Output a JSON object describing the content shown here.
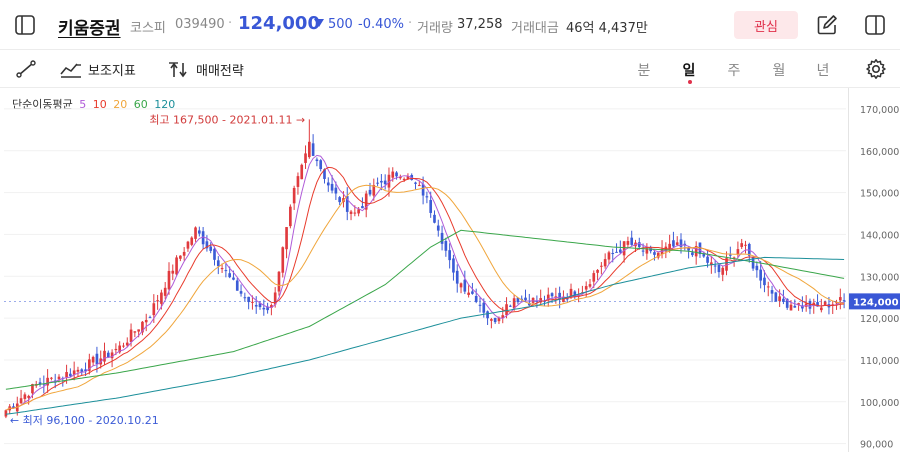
{
  "header": {
    "stock_name": "키움증권",
    "market": "코스피",
    "code": "039490",
    "price": "124,000",
    "change": "500",
    "change_pct": "-0.40%",
    "volume_label": "거래량",
    "volume": "37,258",
    "amount_label": "거래대금",
    "amount": "46억 4,437만",
    "favorite_label": "관심",
    "icons": [
      "sidebar-toggle-icon",
      "edit-icon",
      "panel-icon"
    ]
  },
  "toolbar": {
    "draw_icon": "line-draw-icon",
    "indicator_label": "보조지표",
    "strategy_label": "매매전략",
    "periods": [
      "분",
      "일",
      "주",
      "월",
      "년"
    ],
    "active_period": "일",
    "settings_icon": "gear-icon"
  },
  "colors": {
    "up": "#e03a3e",
    "down": "#3b5bd6",
    "ma5": "#b05cd8",
    "ma10": "#e83b2c",
    "ma20": "#f0a63c",
    "ma60": "#3aa64a",
    "ma120": "#1c8f9a"
  },
  "chart_data": {
    "type": "candlestick",
    "legend_title": "단순이동평균",
    "ma_periods": [
      "5",
      "10",
      "20",
      "60",
      "120"
    ],
    "ylim": [
      88000,
      175000
    ],
    "y_ticks": [
      90000,
      100000,
      110000,
      120000,
      130000,
      140000,
      150000,
      160000,
      170000
    ],
    "y_tick_labels": [
      "90,000",
      "100,000",
      "110,000",
      "120,000",
      "130,000",
      "140,000",
      "150,000",
      "160,000",
      "170,000"
    ],
    "current_price": 124000,
    "current_price_label": "124,000",
    "high_label": "최고 167,500 - 2021.01.11",
    "low_label": "최저 96,100 - 2020.10.21",
    "high_value": 167500,
    "low_value": 96100,
    "x_start_date": "2020.10.21",
    "x_high_date": "2021.01.11",
    "close_anchors": [
      [
        0,
        98000
      ],
      [
        8,
        104000
      ],
      [
        20,
        108000
      ],
      [
        30,
        113000
      ],
      [
        38,
        121000
      ],
      [
        44,
        132000
      ],
      [
        50,
        141000
      ],
      [
        55,
        135000
      ],
      [
        60,
        128000
      ],
      [
        65,
        123000
      ],
      [
        70,
        122500
      ],
      [
        76,
        150000
      ],
      [
        80,
        162000
      ],
      [
        86,
        150000
      ],
      [
        92,
        145000
      ],
      [
        98,
        152000
      ],
      [
        104,
        155000
      ],
      [
        110,
        150000
      ],
      [
        114,
        142000
      ],
      [
        118,
        130000
      ],
      [
        124,
        125000
      ],
      [
        128,
        119000
      ],
      [
        134,
        125000
      ],
      [
        140,
        124000
      ],
      [
        146,
        125000
      ],
      [
        152,
        127000
      ],
      [
        158,
        134000
      ],
      [
        164,
        138000
      ],
      [
        170,
        135000
      ],
      [
        176,
        137000
      ],
      [
        182,
        136000
      ],
      [
        188,
        131000
      ],
      [
        194,
        138000
      ],
      [
        198,
        131000
      ],
      [
        204,
        124000
      ],
      [
        210,
        123000
      ],
      [
        214,
        122500
      ],
      [
        219,
        124000
      ],
      [
        221,
        124000
      ]
    ],
    "ma60_anchors": [
      [
        0,
        103000
      ],
      [
        30,
        107000
      ],
      [
        60,
        112000
      ],
      [
        80,
        118000
      ],
      [
        100,
        128000
      ],
      [
        112,
        137000
      ],
      [
        120,
        141000
      ],
      [
        140,
        139000
      ],
      [
        160,
        137000
      ],
      [
        180,
        136000
      ],
      [
        200,
        133000
      ],
      [
        221,
        129500
      ]
    ],
    "ma120_anchors": [
      [
        0,
        97000
      ],
      [
        30,
        101000
      ],
      [
        60,
        106000
      ],
      [
        80,
        110000
      ],
      [
        100,
        115000
      ],
      [
        120,
        120000
      ],
      [
        140,
        123000
      ],
      [
        160,
        128000
      ],
      [
        180,
        132000
      ],
      [
        200,
        134500
      ],
      [
        221,
        134000
      ]
    ]
  }
}
